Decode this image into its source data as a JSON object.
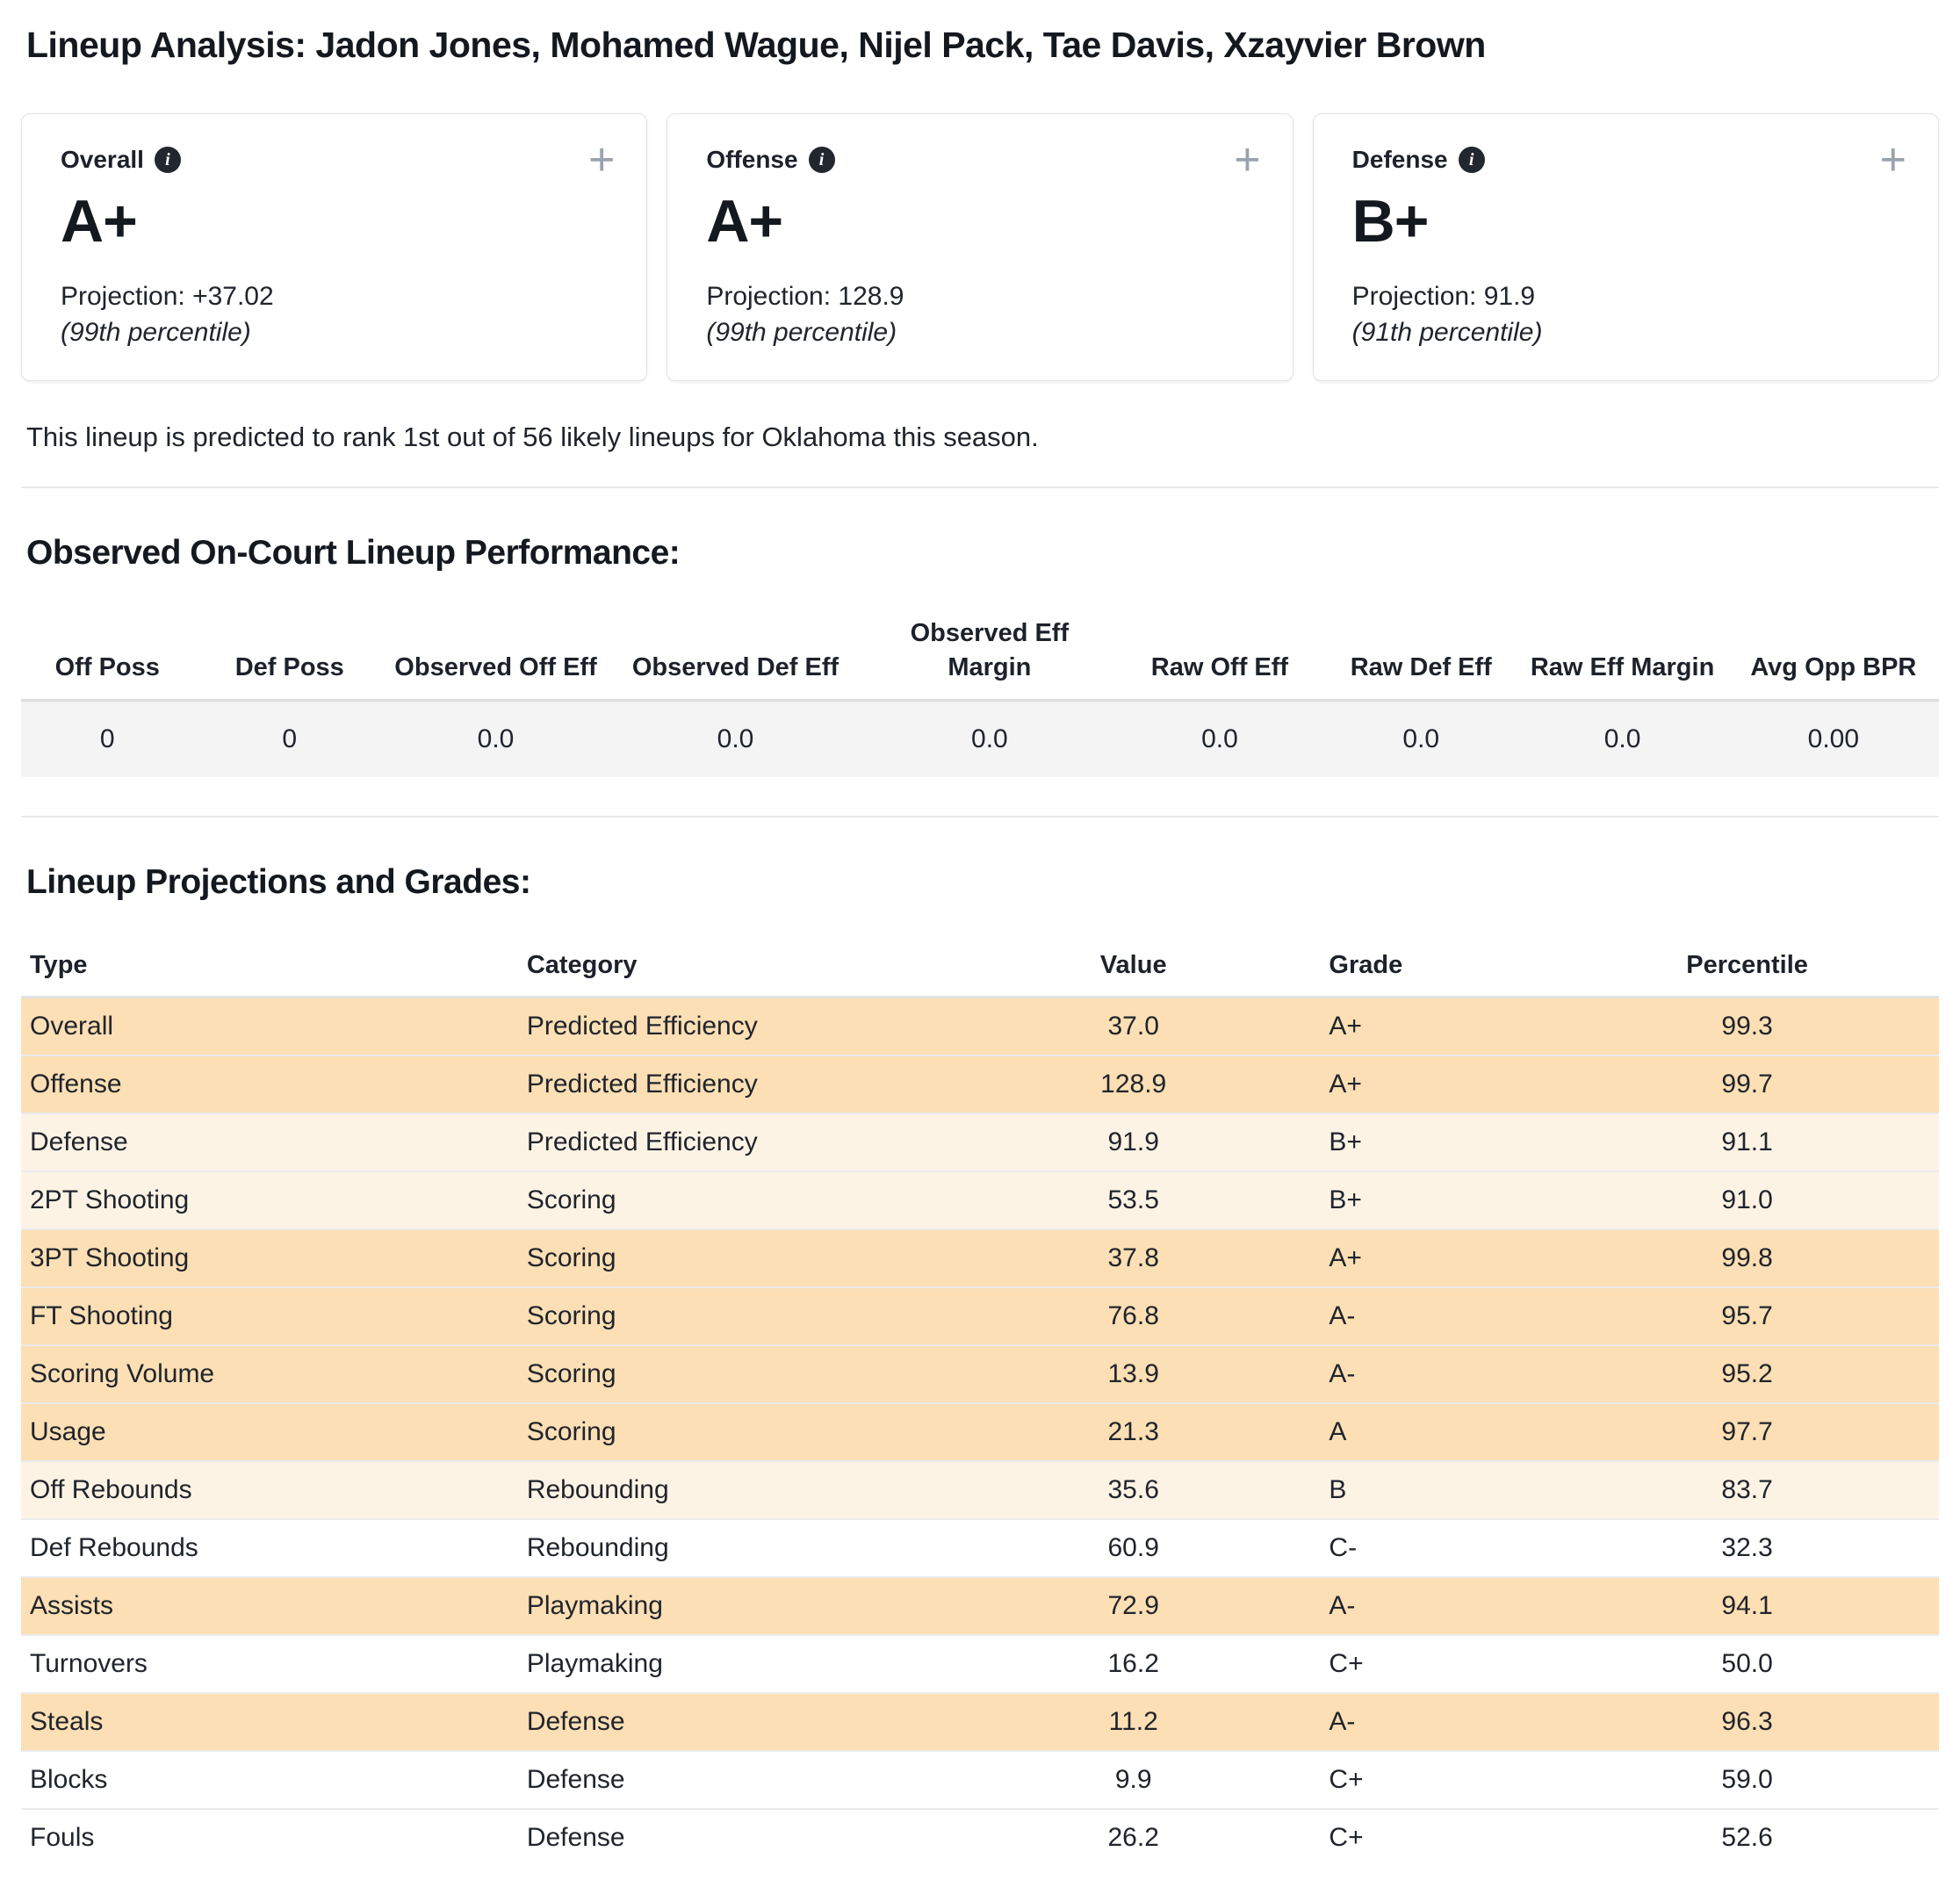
{
  "page": {
    "title": "Lineup Analysis: Jadon Jones, Mohamed Wague, Nijel Pack, Tae Davis, Xzayvier Brown",
    "prediction_note": "This lineup is predicted to rank 1st out of 56 likely lineups for Oklahoma this season."
  },
  "icons": {
    "info": "i",
    "plus": "+"
  },
  "cards": [
    {
      "label": "Overall",
      "grade": "A+",
      "projection": "Projection: +37.02",
      "percentile": "(99th percentile)"
    },
    {
      "label": "Offense",
      "grade": "A+",
      "projection": "Projection: 128.9",
      "percentile": "(99th percentile)"
    },
    {
      "label": "Defense",
      "grade": "B+",
      "projection": "Projection: 91.9",
      "percentile": "(91th percentile)"
    }
  ],
  "observed": {
    "heading": "Observed On-Court Lineup Performance:",
    "headers": [
      "Off Poss",
      "Def Poss",
      "Observed Off Eff",
      "Observed Def Eff",
      "Observed Eff Margin",
      "Raw Off Eff",
      "Raw Def Eff",
      "Raw Eff Margin",
      "Avg Opp BPR"
    ],
    "values": [
      "0",
      "0",
      "0.0",
      "0.0",
      "0.0",
      "0.0",
      "0.0",
      "0.0",
      "0.00"
    ]
  },
  "projections": {
    "heading": "Lineup Projections and Grades:",
    "headers": [
      "Type",
      "Category",
      "Value",
      "Grade",
      "Percentile"
    ],
    "rows": [
      {
        "type": "Overall",
        "category": "Predicted Efficiency",
        "value": "37.0",
        "grade": "A+",
        "percentile": "99.3",
        "tier": "high"
      },
      {
        "type": "Offense",
        "category": "Predicted Efficiency",
        "value": "128.9",
        "grade": "A+",
        "percentile": "99.7",
        "tier": "high"
      },
      {
        "type": "Defense",
        "category": "Predicted Efficiency",
        "value": "91.9",
        "grade": "B+",
        "percentile": "91.1",
        "tier": "mid"
      },
      {
        "type": "2PT Shooting",
        "category": "Scoring",
        "value": "53.5",
        "grade": "B+",
        "percentile": "91.0",
        "tier": "mid"
      },
      {
        "type": "3PT Shooting",
        "category": "Scoring",
        "value": "37.8",
        "grade": "A+",
        "percentile": "99.8",
        "tier": "high"
      },
      {
        "type": "FT Shooting",
        "category": "Scoring",
        "value": "76.8",
        "grade": "A-",
        "percentile": "95.7",
        "tier": "high"
      },
      {
        "type": "Scoring Volume",
        "category": "Scoring",
        "value": "13.9",
        "grade": "A-",
        "percentile": "95.2",
        "tier": "high"
      },
      {
        "type": "Usage",
        "category": "Scoring",
        "value": "21.3",
        "grade": "A",
        "percentile": "97.7",
        "tier": "high"
      },
      {
        "type": "Off Rebounds",
        "category": "Rebounding",
        "value": "35.6",
        "grade": "B",
        "percentile": "83.7",
        "tier": "mid"
      },
      {
        "type": "Def Rebounds",
        "category": "Rebounding",
        "value": "60.9",
        "grade": "C-",
        "percentile": "32.3",
        "tier": "low"
      },
      {
        "type": "Assists",
        "category": "Playmaking",
        "value": "72.9",
        "grade": "A-",
        "percentile": "94.1",
        "tier": "high"
      },
      {
        "type": "Turnovers",
        "category": "Playmaking",
        "value": "16.2",
        "grade": "C+",
        "percentile": "50.0",
        "tier": "low"
      },
      {
        "type": "Steals",
        "category": "Defense",
        "value": "11.2",
        "grade": "A-",
        "percentile": "96.3",
        "tier": "high"
      },
      {
        "type": "Blocks",
        "category": "Defense",
        "value": "9.9",
        "grade": "C+",
        "percentile": "59.0",
        "tier": "low"
      },
      {
        "type": "Fouls",
        "category": "Defense",
        "value": "26.2",
        "grade": "C+",
        "percentile": "52.6",
        "tier": "low"
      }
    ]
  },
  "colors": {
    "tier_high": "#fcdfb4",
    "tier_mid": "#fdf3e5",
    "tier_low": "#ffffff",
    "observed_row_bg": "#f4f4f5",
    "text": "#20242c"
  }
}
